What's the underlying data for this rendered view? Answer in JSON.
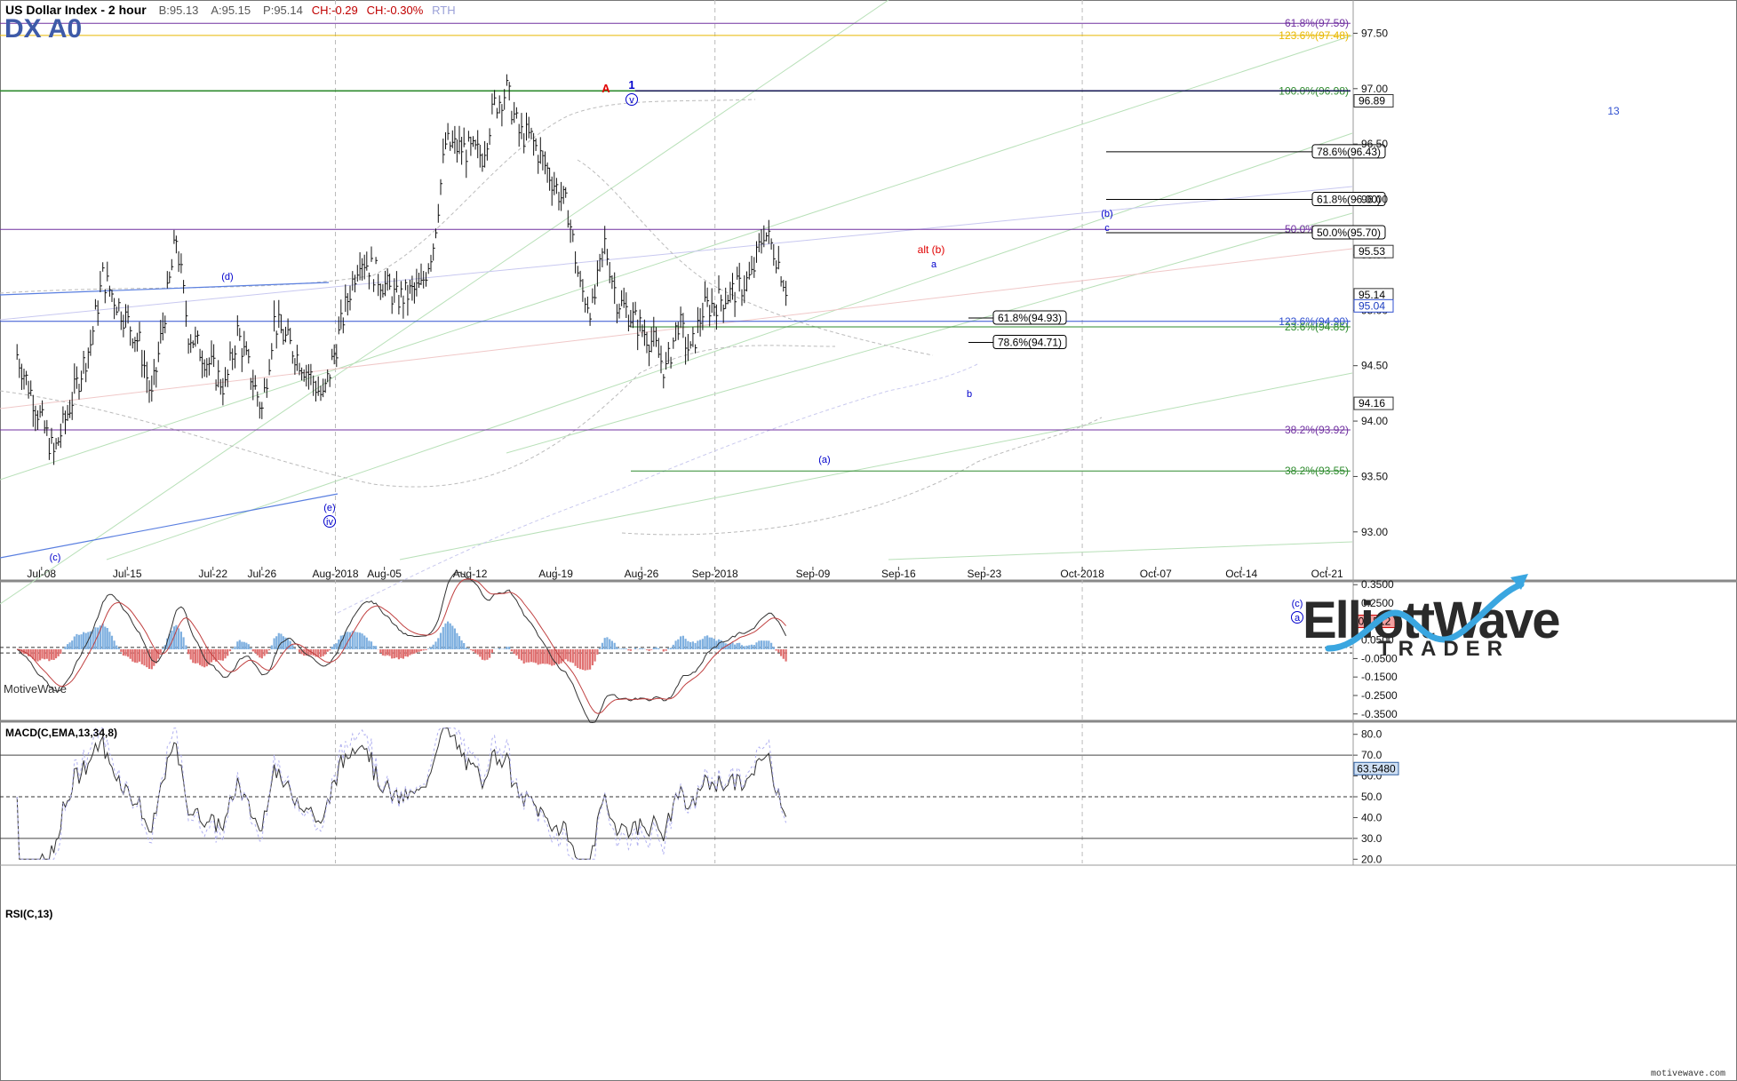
{
  "header": {
    "title": "US Dollar Index - 2 hour",
    "bid": "B:95.13",
    "ask": "A:95.15",
    "price": "P:95.14",
    "change": "CH:-0.29",
    "change_pct": "CH:-0.30%",
    "session": "RTH",
    "symbol": "DX A0"
  },
  "watermark": {
    "brand_top": "ElliottWave",
    "brand_bottom": "TRADER"
  },
  "footer": {
    "platform": "MotiveWave",
    "site": "motivewave.com"
  },
  "price_axis": {
    "ticks": [
      "97.50",
      "97.00",
      "96.50",
      "96.00",
      "95.50",
      "95.00",
      "94.50",
      "94.00",
      "93.50",
      "93.00"
    ],
    "markers": [
      {
        "label": "96.89",
        "value": 96.89,
        "style": "dark"
      },
      {
        "label": "95.53",
        "value": 95.53,
        "style": "dark"
      },
      {
        "label": "95.14",
        "value": 95.14,
        "style": "dark"
      },
      {
        "label": "95.04",
        "value": 95.04,
        "style": "blue"
      },
      {
        "label": "94.16",
        "value": 94.16,
        "style": "dark"
      }
    ]
  },
  "time_axis": {
    "labels": [
      "Jul-08",
      "Jul-15",
      "Jul-22",
      "Jul-26",
      "Aug-2018",
      "Aug-05",
      "Aug-12",
      "Aug-19",
      "Aug-26",
      "Sep-2018",
      "Sep-09",
      "Sep-16",
      "Sep-23",
      "Oct-2018",
      "Oct-07",
      "Oct-14",
      "Oct-21"
    ]
  },
  "fib_levels": [
    {
      "label": "61.8%(97.59)",
      "value": 97.59,
      "color": "#7030a0"
    },
    {
      "label": "123.6%(97.48)",
      "value": 97.48,
      "color": "#e8b800"
    },
    {
      "label": "100.0%(96.98)",
      "value": 96.98,
      "color": "#2e8b2e"
    },
    {
      "label": "50.0%(95.73)",
      "value": 95.73,
      "color": "#7030a0"
    },
    {
      "label": "123.6%(94.90)",
      "value": 94.9,
      "color": "#3050d0"
    },
    {
      "label": "23.6%(94.85)",
      "value": 94.85,
      "color": "#2e8b2e"
    },
    {
      "label": "38.2%(93.92)",
      "value": 93.92,
      "color": "#7030a0"
    },
    {
      "label": "38.2%(93.55)",
      "value": 93.55,
      "color": "#2e8b2e"
    }
  ],
  "target_boxes": [
    {
      "label": "78.6%(96.43)",
      "value": 96.43
    },
    {
      "label": "61.8%(96.00)",
      "value": 96.0
    },
    {
      "label": "50.0%(95.70)",
      "value": 95.7
    },
    {
      "label": "61.8%(94.93)",
      "value": 94.93
    },
    {
      "label": "78.6%(94.71)",
      "value": 94.71
    }
  ],
  "wave_labels": [
    {
      "text": "A",
      "color": "#e00000"
    },
    {
      "text": "1",
      "color": "#0000cc"
    },
    {
      "text": "v",
      "color": "#0000cc"
    },
    {
      "text": "(d)",
      "color": "#0000cc"
    },
    {
      "text": "(e)",
      "color": "#0000cc"
    },
    {
      "text": "iv",
      "color": "#0000cc"
    },
    {
      "text": "(c)",
      "color": "#0000cc"
    },
    {
      "text": "(a)",
      "color": "#0000cc"
    },
    {
      "text": "alt (b)",
      "color": "#e00000"
    },
    {
      "text": "a",
      "color": "#0000cc"
    },
    {
      "text": "(b)",
      "color": "#0000cc"
    },
    {
      "text": "c",
      "color": "#0000cc"
    },
    {
      "text": "b",
      "color": "#0000cc"
    },
    {
      "text": "(c)",
      "color": "#0000cc"
    },
    {
      "text": "a",
      "color": "#0000cc"
    },
    {
      "text": "13",
      "color": "#3050d0"
    }
  ],
  "macd": {
    "title": "MACD(C,EMA,13,34,8)",
    "ticks": [
      "0.3500",
      "0.2500",
      "0.1500",
      "0.0500",
      "-0.0500",
      "-0.1500",
      "-0.2500",
      "-0.3500"
    ],
    "marker": "0.1512"
  },
  "rsi": {
    "title": "RSI(C,13)",
    "ticks": [
      "80.0",
      "70.0",
      "60.0",
      "50.0",
      "40.0",
      "30.0",
      "20.0"
    ],
    "marker": "63.5480"
  },
  "chart_data": {
    "type": "bar",
    "title": "US Dollar Index - 2 hour",
    "x_range": [
      "Jul-08",
      "Oct-21"
    ],
    "y_range": [
      92.75,
      97.8
    ],
    "price_anchors": [
      {
        "date": "Jul-06",
        "price": 94.6
      },
      {
        "date": "Jul-09",
        "price": 93.7
      },
      {
        "date": "Jul-12",
        "price": 94.7
      },
      {
        "date": "Jul-13",
        "price": 95.3
      },
      {
        "date": "Jul-16",
        "price": 94.7
      },
      {
        "date": "Jul-17",
        "price": 94.2
      },
      {
        "date": "Jul-19",
        "price": 95.65
      },
      {
        "date": "Jul-20",
        "price": 94.8
      },
      {
        "date": "Jul-23",
        "price": 94.3
      },
      {
        "date": "Jul-24",
        "price": 94.8
      },
      {
        "date": "Jul-26",
        "price": 94.1
      },
      {
        "date": "Jul-27",
        "price": 94.9
      },
      {
        "date": "Jul-30",
        "price": 94.4
      },
      {
        "date": "Jul-31",
        "price": 94.2
      },
      {
        "date": "Aug-02",
        "price": 95.1
      },
      {
        "date": "Aug-03",
        "price": 95.5
      },
      {
        "date": "Aug-06",
        "price": 95.1
      },
      {
        "date": "Aug-08",
        "price": 95.2
      },
      {
        "date": "Aug-09",
        "price": 95.6
      },
      {
        "date": "Aug-10",
        "price": 96.5
      },
      {
        "date": "Aug-13",
        "price": 96.4
      },
      {
        "date": "Aug-14",
        "price": 96.85
      },
      {
        "date": "Aug-15",
        "price": 96.98
      },
      {
        "date": "Aug-16",
        "price": 96.6
      },
      {
        "date": "Aug-17",
        "price": 96.55
      },
      {
        "date": "Aug-20",
        "price": 95.9
      },
      {
        "date": "Aug-21",
        "price": 95.2
      },
      {
        "date": "Aug-22",
        "price": 95.0
      },
      {
        "date": "Aug-23",
        "price": 95.6
      },
      {
        "date": "Aug-24",
        "price": 95.1
      },
      {
        "date": "Aug-27",
        "price": 94.7
      },
      {
        "date": "Aug-28",
        "price": 94.45
      },
      {
        "date": "Aug-29",
        "price": 94.9
      },
      {
        "date": "Aug-30",
        "price": 94.6
      },
      {
        "date": "Aug-31",
        "price": 95.0
      },
      {
        "date": "Sep-03",
        "price": 95.2
      },
      {
        "date": "Sep-04",
        "price": 95.3
      },
      {
        "date": "Sep-05",
        "price": 95.72
      },
      {
        "date": "Sep-06",
        "price": 95.5
      },
      {
        "date": "Sep-07",
        "price": 95.14
      }
    ],
    "fib_levels": [
      97.59,
      97.48,
      96.98,
      95.73,
      94.9,
      94.85,
      93.92,
      93.55
    ],
    "targets": [
      96.43,
      96.0,
      95.7,
      94.93,
      94.71
    ],
    "macd_range": [
      -0.38,
      0.38
    ],
    "rsi_range": [
      18,
      85
    ],
    "rsi_levels": [
      70,
      50,
      30
    ]
  }
}
